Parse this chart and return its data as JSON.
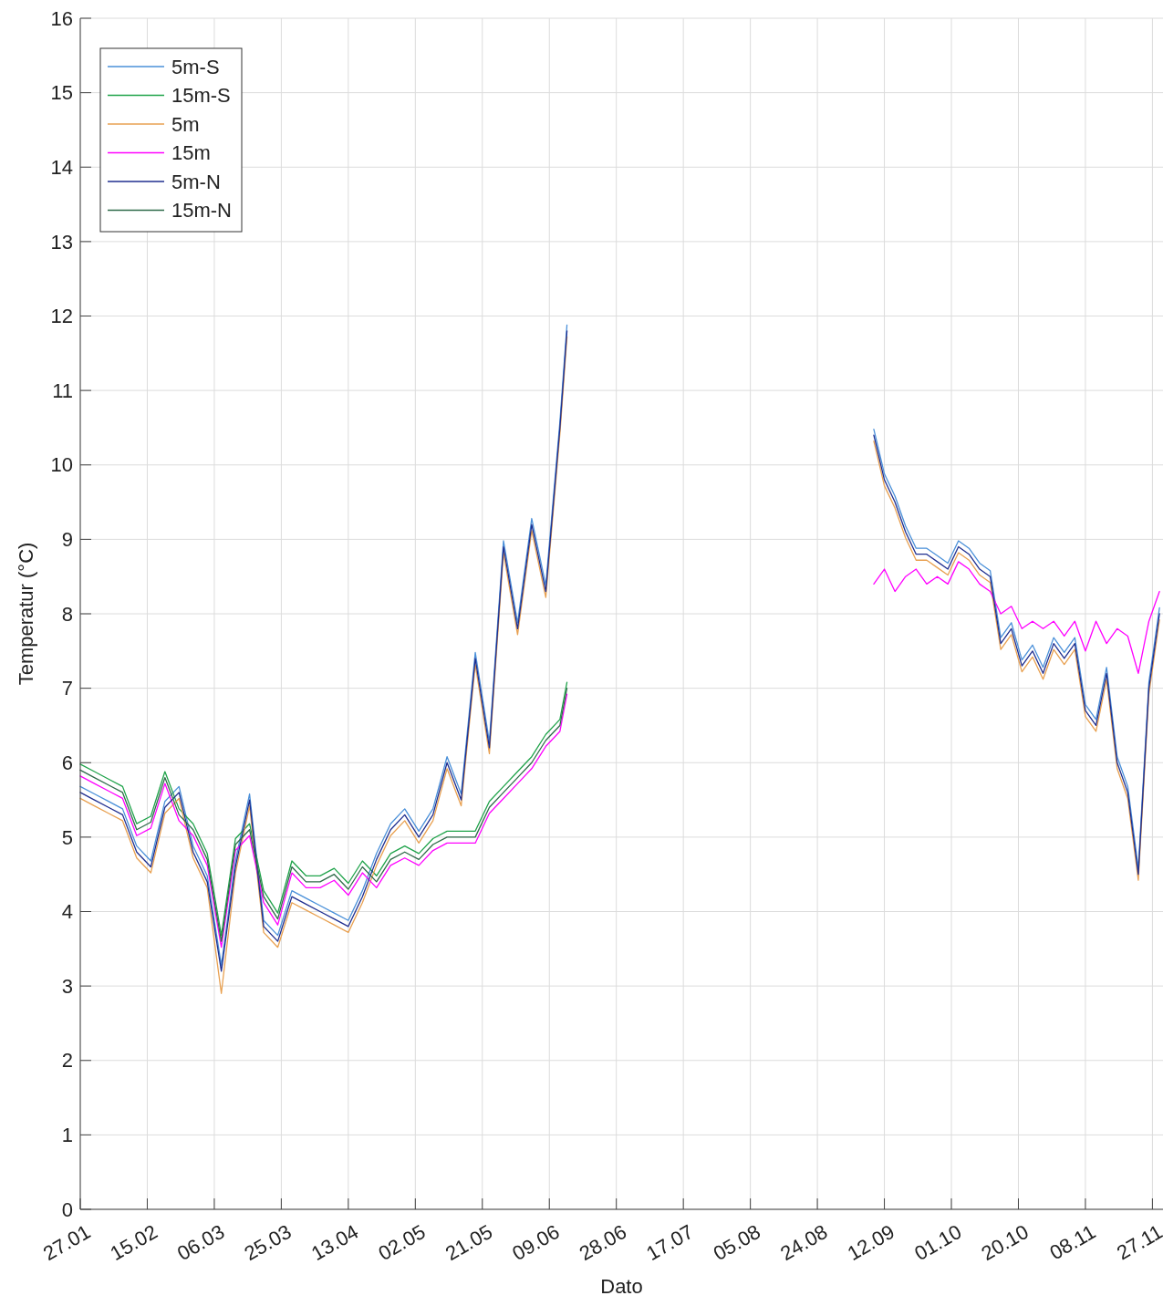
{
  "chart_data": {
    "type": "line",
    "xlabel": "Dato",
    "ylabel": "Temperatur (°C)",
    "x": [
      "--01-27",
      "--01-31",
      "--02-04",
      "--02-08",
      "--02-12",
      "--02-16",
      "--02-20",
      "--02-24",
      "--02-28",
      "--03-04",
      "--03-08",
      "--03-12",
      "--03-16",
      "--03-20",
      "--03-24",
      "--03-28",
      "--04-01",
      "--04-05",
      "--04-09",
      "--04-13",
      "--04-17",
      "--04-21",
      "--04-25",
      "--04-29",
      "--05-03",
      "--05-07",
      "--05-11",
      "--05-15",
      "--05-19",
      "--05-23",
      "--05-27",
      "--05-31",
      "--06-04",
      "--06-08",
      "--06-12",
      "--06-14",
      "--07-30",
      "--09-09",
      "--09-12",
      "--09-15",
      "--09-18",
      "--09-21",
      "--09-24",
      "--09-27",
      "--09-30",
      "--10-03",
      "--10-06",
      "--10-09",
      "--10-12",
      "--10-15",
      "--10-18",
      "--10-21",
      "--10-24",
      "--10-27",
      "--10-30",
      "--11-02",
      "--11-05",
      "--11-08",
      "--11-11",
      "--11-14",
      "--11-17",
      "--11-20",
      "--11-23",
      "--11-26",
      "--11-29"
    ],
    "series": [
      {
        "name": "5m-S",
        "color": "#4a90d9",
        "values": [
          5.68,
          5.58,
          5.48,
          5.38,
          4.88,
          4.68,
          5.48,
          5.68,
          4.88,
          4.48,
          3.28,
          4.68,
          5.58,
          3.88,
          3.68,
          4.28,
          4.18,
          4.08,
          3.98,
          3.88,
          4.28,
          4.78,
          5.18,
          5.38,
          5.08,
          5.38,
          6.08,
          5.58,
          7.48,
          6.28,
          8.98,
          7.88,
          9.28,
          8.38,
          10.58,
          11.88,
          null,
          10.48,
          9.88,
          9.58,
          9.18,
          8.88,
          8.88,
          8.78,
          8.68,
          8.98,
          8.88,
          8.68,
          8.58,
          7.68,
          7.88,
          7.38,
          7.58,
          7.28,
          7.68,
          7.48,
          7.68,
          6.78,
          6.58,
          7.28,
          6.08,
          5.68,
          4.58,
          7.08,
          8.08
        ]
      },
      {
        "name": "15m-S",
        "color": "#1fa34a",
        "values": [
          5.98,
          5.88,
          5.78,
          5.68,
          5.18,
          5.28,
          5.88,
          5.38,
          5.18,
          4.78,
          3.68,
          4.98,
          5.18,
          4.28,
          3.98,
          4.68,
          4.48,
          4.48,
          4.58,
          4.38,
          4.68,
          4.48,
          4.78,
          4.88,
          4.78,
          4.98,
          5.08,
          5.08,
          5.08,
          5.48,
          5.68,
          5.88,
          6.08,
          6.38,
          6.58,
          7.08,
          null,
          null,
          null,
          null,
          null,
          null,
          null,
          null,
          null,
          null,
          null,
          null,
          null,
          null,
          null,
          null,
          null,
          null,
          null,
          null,
          null,
          null,
          null,
          null,
          null,
          null,
          null,
          null,
          null
        ]
      },
      {
        "name": "5m",
        "color": "#e8a050",
        "values": [
          5.52,
          5.42,
          5.32,
          5.22,
          4.72,
          4.52,
          5.32,
          5.52,
          4.72,
          4.32,
          2.9,
          4.52,
          5.42,
          3.72,
          3.52,
          4.12,
          4.02,
          3.92,
          3.82,
          3.72,
          4.12,
          4.62,
          5.02,
          5.22,
          4.92,
          5.22,
          5.92,
          5.42,
          7.32,
          6.12,
          8.82,
          7.72,
          9.12,
          8.22,
          10.42,
          11.72,
          null,
          10.32,
          9.72,
          9.42,
          9.02,
          8.72,
          8.72,
          8.62,
          8.52,
          8.82,
          8.72,
          8.52,
          8.42,
          7.52,
          7.72,
          7.22,
          7.42,
          7.12,
          7.52,
          7.32,
          7.52,
          6.62,
          6.42,
          7.12,
          5.92,
          5.52,
          4.42,
          6.92,
          7.92
        ]
      },
      {
        "name": "15m",
        "color": "#ff00ff",
        "values": [
          5.82,
          5.72,
          5.62,
          5.52,
          5.02,
          5.12,
          5.72,
          5.22,
          5.02,
          4.62,
          3.52,
          4.82,
          5.02,
          4.12,
          3.82,
          4.52,
          4.32,
          4.32,
          4.42,
          4.22,
          4.52,
          4.32,
          4.62,
          4.72,
          4.62,
          4.82,
          4.92,
          4.92,
          4.92,
          5.32,
          5.52,
          5.72,
          5.92,
          6.22,
          6.42,
          6.92,
          null,
          8.4,
          8.6,
          8.3,
          8.5,
          8.6,
          8.4,
          8.5,
          8.4,
          8.7,
          8.6,
          8.4,
          8.3,
          8.0,
          8.1,
          7.8,
          7.9,
          7.8,
          7.9,
          7.7,
          7.9,
          7.5,
          7.9,
          7.6,
          7.8,
          7.7,
          7.2,
          7.9,
          8.3
        ]
      },
      {
        "name": "5m-N",
        "color": "#1f2e8f",
        "values": [
          5.6,
          5.5,
          5.4,
          5.3,
          4.8,
          4.6,
          5.4,
          5.6,
          4.8,
          4.4,
          3.2,
          4.6,
          5.5,
          3.8,
          3.6,
          4.2,
          4.1,
          4.0,
          3.9,
          3.8,
          4.2,
          4.7,
          5.1,
          5.3,
          5.0,
          5.3,
          6.0,
          5.5,
          7.4,
          6.2,
          8.9,
          7.8,
          9.2,
          8.3,
          10.5,
          11.8,
          null,
          10.4,
          9.8,
          9.5,
          9.1,
          8.8,
          8.8,
          8.7,
          8.6,
          8.9,
          8.8,
          8.6,
          8.5,
          7.6,
          7.8,
          7.3,
          7.5,
          7.2,
          7.6,
          7.4,
          7.6,
          6.7,
          6.5,
          7.2,
          6.0,
          5.6,
          4.5,
          7.0,
          8.0
        ]
      },
      {
        "name": "15m-N",
        "color": "#2f6b4a",
        "values": [
          5.9,
          5.8,
          5.7,
          5.6,
          5.1,
          5.2,
          5.8,
          5.3,
          5.1,
          4.7,
          3.6,
          4.9,
          5.1,
          4.2,
          3.9,
          4.6,
          4.4,
          4.4,
          4.5,
          4.3,
          4.6,
          4.4,
          4.7,
          4.8,
          4.7,
          4.9,
          5.0,
          5.0,
          5.0,
          5.4,
          5.6,
          5.8,
          6.0,
          6.3,
          6.5,
          7.0,
          null,
          null,
          null,
          null,
          null,
          null,
          null,
          null,
          null,
          null,
          null,
          null,
          null,
          null,
          null,
          null,
          null,
          null,
          null,
          null,
          null,
          null,
          null,
          null,
          null,
          null,
          null,
          null,
          null
        ]
      }
    ],
    "xlim": [
      "--01-27",
      "--11-30"
    ],
    "xticks": [
      {
        "value": "--01-27",
        "label": "27.01"
      },
      {
        "value": "--02-15",
        "label": "15.02"
      },
      {
        "value": "--03-06",
        "label": "06.03"
      },
      {
        "value": "--03-25",
        "label": "25.03"
      },
      {
        "value": "--04-13",
        "label": "13.04"
      },
      {
        "value": "--05-02",
        "label": "02.05"
      },
      {
        "value": "--05-21",
        "label": "21.05"
      },
      {
        "value": "--06-09",
        "label": "09.06"
      },
      {
        "value": "--06-28",
        "label": "28.06"
      },
      {
        "value": "--07-17",
        "label": "17.07"
      },
      {
        "value": "--08-05",
        "label": "05.08"
      },
      {
        "value": "--08-24",
        "label": "24.08"
      },
      {
        "value": "--09-12",
        "label": "12.09"
      },
      {
        "value": "--10-01",
        "label": "01.10"
      },
      {
        "value": "--10-20",
        "label": "20.10"
      },
      {
        "value": "--11-08",
        "label": "08.11"
      },
      {
        "value": "--11-27",
        "label": "27.11"
      }
    ],
    "ylim": [
      0,
      16
    ],
    "yticks": [
      0,
      1,
      2,
      3,
      4,
      5,
      6,
      7,
      8,
      9,
      10,
      11,
      12,
      13,
      14,
      15,
      16
    ],
    "grid": true,
    "legend": "top left",
    "line_style": "solid"
  }
}
